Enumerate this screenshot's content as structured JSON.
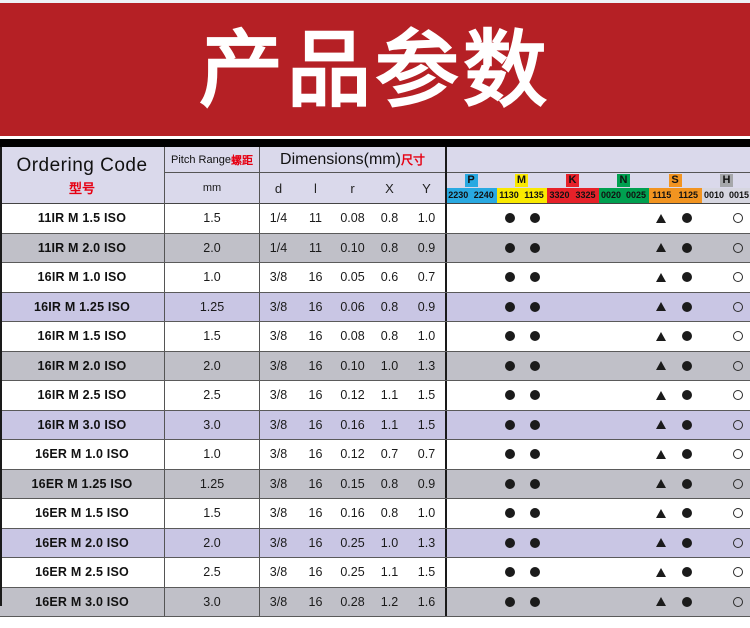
{
  "banner": {
    "title": "产品参数"
  },
  "colors": {
    "banner_red": "#b52025",
    "black_bar": "#000000",
    "header_bg": "#dad9eb",
    "accent_red_text": "#e60012",
    "row_white": "#ffffff",
    "row_gray": "#c0c0c8",
    "row_lavender": "#c9c6e4"
  },
  "table": {
    "header": {
      "ordering_code": {
        "en": "Ordering Code",
        "zh": "型号"
      },
      "pitch_range": {
        "en": "Pitch Range",
        "zh": "螺距",
        "unit": "mm"
      },
      "dimensions": {
        "en": "Dimensions(mm)",
        "zh": "尺寸",
        "subcols": [
          "d",
          "l",
          "r",
          "X",
          "Y"
        ]
      },
      "grades": [
        {
          "letter": "P",
          "color": "#29a9e1",
          "band_color": "#29a9e1",
          "codes": [
            "2230",
            "2240"
          ]
        },
        {
          "letter": "M",
          "color": "#f9e900",
          "band_color": "#f9e900",
          "codes": [
            "1130",
            "1135"
          ]
        },
        {
          "letter": "K",
          "color": "#e62129",
          "band_color": "#e62129",
          "codes": [
            "3320",
            "3325"
          ]
        },
        {
          "letter": "N",
          "color": "#00a050",
          "band_color": "#00a050",
          "codes": [
            "0020",
            "0025"
          ]
        },
        {
          "letter": "S",
          "color": "#f29420",
          "band_color": "#f29420",
          "codes": [
            "1115",
            "1125"
          ]
        },
        {
          "letter": "H",
          "color": "#a5a7aa",
          "band_color": "#d6d6e0",
          "codes": [
            "0010",
            "0015"
          ]
        }
      ]
    },
    "symbol_legend": {
      "dot": "●",
      "triangle": "▲",
      "circle": "○"
    },
    "symbols_per_row": [
      "",
      "",
      "dot",
      "dot",
      "",
      "",
      "",
      "",
      "triangle",
      "dot",
      "",
      "circle"
    ],
    "rows": [
      {
        "code": "11IR M 1.5 ISO",
        "pitch": "1.5",
        "dims": [
          "1/4",
          "11",
          "0.08",
          "0.8",
          "1.0"
        ],
        "bg": "white"
      },
      {
        "code": "11IR M 2.0 ISO",
        "pitch": "2.0",
        "dims": [
          "1/4",
          "11",
          "0.10",
          "0.8",
          "0.9"
        ],
        "bg": "gray"
      },
      {
        "code": "16IR M 1.0 ISO",
        "pitch": "1.0",
        "dims": [
          "3/8",
          "16",
          "0.05",
          "0.6",
          "0.7"
        ],
        "bg": "white"
      },
      {
        "code": "16IR M 1.25 ISO",
        "pitch": "1.25",
        "dims": [
          "3/8",
          "16",
          "0.06",
          "0.8",
          "0.9"
        ],
        "bg": "lavender"
      },
      {
        "code": "16IR M 1.5 ISO",
        "pitch": "1.5",
        "dims": [
          "3/8",
          "16",
          "0.08",
          "0.8",
          "1.0"
        ],
        "bg": "white"
      },
      {
        "code": "16IR M 2.0 ISO",
        "pitch": "2.0",
        "dims": [
          "3/8",
          "16",
          "0.10",
          "1.0",
          "1.3"
        ],
        "bg": "gray"
      },
      {
        "code": "16IR M 2.5 ISO",
        "pitch": "2.5",
        "dims": [
          "3/8",
          "16",
          "0.12",
          "1.1",
          "1.5"
        ],
        "bg": "white"
      },
      {
        "code": "16IR M 3.0 ISO",
        "pitch": "3.0",
        "dims": [
          "3/8",
          "16",
          "0.16",
          "1.1",
          "1.5"
        ],
        "bg": "lavender"
      },
      {
        "code": "16ER M 1.0 ISO",
        "pitch": "1.0",
        "dims": [
          "3/8",
          "16",
          "0.12",
          "0.7",
          "0.7"
        ],
        "bg": "white"
      },
      {
        "code": "16ER M 1.25 ISO",
        "pitch": "1.25",
        "dims": [
          "3/8",
          "16",
          "0.15",
          "0.8",
          "0.9"
        ],
        "bg": "gray"
      },
      {
        "code": "16ER M 1.5 ISO",
        "pitch": "1.5",
        "dims": [
          "3/8",
          "16",
          "0.16",
          "0.8",
          "1.0"
        ],
        "bg": "white"
      },
      {
        "code": "16ER M 2.0 ISO",
        "pitch": "2.0",
        "dims": [
          "3/8",
          "16",
          "0.25",
          "1.0",
          "1.3"
        ],
        "bg": "lavender"
      },
      {
        "code": "16ER M 2.5 ISO",
        "pitch": "2.5",
        "dims": [
          "3/8",
          "16",
          "0.25",
          "1.1",
          "1.5"
        ],
        "bg": "white"
      },
      {
        "code": "16ER M 3.0 ISO",
        "pitch": "3.0",
        "dims": [
          "3/8",
          "16",
          "0.28",
          "1.2",
          "1.6"
        ],
        "bg": "gray"
      }
    ]
  }
}
